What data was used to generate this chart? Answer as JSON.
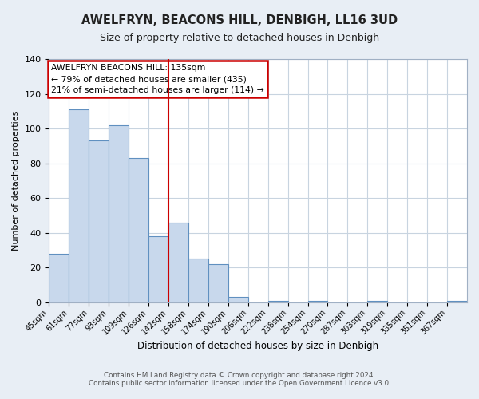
{
  "title": "AWELFRYN, BEACONS HILL, DENBIGH, LL16 3UD",
  "subtitle": "Size of property relative to detached houses in Denbigh",
  "xlabel": "Distribution of detached houses by size in Denbigh",
  "ylabel": "Number of detached properties",
  "bar_values": [
    28,
    111,
    93,
    102,
    83,
    38,
    46,
    25,
    22,
    3,
    0,
    1,
    0,
    1,
    0,
    0,
    1,
    0,
    0,
    0,
    1
  ],
  "bin_labels": [
    "45sqm",
    "61sqm",
    "77sqm",
    "93sqm",
    "109sqm",
    "126sqm",
    "142sqm",
    "158sqm",
    "174sqm",
    "190sqm",
    "206sqm",
    "222sqm",
    "238sqm",
    "254sqm",
    "270sqm",
    "287sqm",
    "303sqm",
    "319sqm",
    "335sqm",
    "351sqm",
    "367sqm"
  ],
  "bar_color": "#c8d8ec",
  "bar_edge_color": "#6090c0",
  "vline_x": 6,
  "vline_color": "#cc0000",
  "ylim": [
    0,
    140
  ],
  "yticks": [
    0,
    20,
    40,
    60,
    80,
    100,
    120,
    140
  ],
  "annotation_title": "AWELFRYN BEACONS HILL: 135sqm",
  "annotation_line1": "← 79% of detached houses are smaller (435)",
  "annotation_line2": "21% of semi-detached houses are larger (114) →",
  "annotation_box_color": "#ffffff",
  "annotation_box_edge": "#cc0000",
  "footer1": "Contains HM Land Registry data © Crown copyright and database right 2024.",
  "footer2": "Contains public sector information licensed under the Open Government Licence v3.0.",
  "background_color": "#e8eef5",
  "plot_background": "#ffffff",
  "grid_color": "#c8d4e0"
}
